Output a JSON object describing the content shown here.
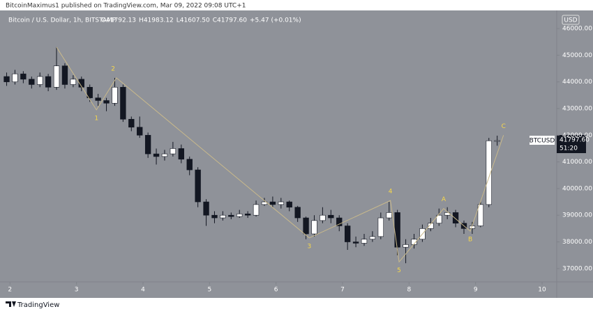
{
  "chart_data": {
    "type": "candlestick",
    "attribution": "BitcoinMaximus1 published on TradingView.com, Mar 09, 2022 09:08 UTC+1",
    "symbol": "Bitcoin / U.S. Dollar, 1h, BITSTAMP",
    "ohlc_legend": [
      {
        "key": "O",
        "value": "41792.13"
      },
      {
        "key": "H",
        "value": "41983.12"
      },
      {
        "key": "L",
        "value": "41607.50"
      },
      {
        "key": "C",
        "value": "41797.60"
      }
    ],
    "change": "+5.47 (+0.01%)",
    "currency": "USD",
    "ticker_tag": "BTCUSD",
    "last_price_label": "41797.60",
    "countdown": "51:20",
    "brand": "TradingView",
    "up_color": "#ffffff",
    "down_color": "#131722",
    "wave_color": "#c9b98b",
    "wave_label_color": "#f7d84a",
    "candles": {
      "x": [
        1.95,
        2.075,
        2.2,
        2.325,
        2.45,
        2.575,
        2.7,
        2.825,
        2.95,
        3.075,
        3.2,
        3.325,
        3.45,
        3.575,
        3.7,
        3.825,
        3.95,
        4.075,
        4.2,
        4.325,
        4.45,
        4.575,
        4.7,
        4.825,
        4.95,
        5.075,
        5.2,
        5.325,
        5.45,
        5.575,
        5.7,
        5.825,
        5.95,
        6.075,
        6.2,
        6.325,
        6.45,
        6.575,
        6.7,
        6.825,
        6.95,
        7.075,
        7.2,
        7.325,
        7.45,
        7.575,
        7.7,
        7.825,
        7.95,
        8.075,
        8.2,
        8.325,
        8.45,
        8.575,
        8.7,
        8.825,
        8.95,
        9.075,
        9.2,
        9.325
      ],
      "open": [
        44200,
        44000,
        44300,
        44100,
        43900,
        44200,
        43800,
        44600,
        43900,
        44100,
        43800,
        43400,
        43300,
        43200,
        43800,
        42600,
        42300,
        42000,
        41300,
        41200,
        41300,
        41500,
        41100,
        40700,
        39500,
        39000,
        38900,
        39000,
        38950,
        39050,
        39000,
        39400,
        39500,
        39400,
        39500,
        39300,
        38900,
        38300,
        38800,
        39000,
        38900,
        38600,
        38000,
        37950,
        38100,
        38200,
        38900,
        39100,
        37800,
        37900,
        38100,
        38500,
        38700,
        39000,
        39100,
        38700,
        38500,
        38600,
        39400,
        41792.13
      ],
      "high": [
        44350,
        44450,
        44400,
        44200,
        44350,
        44300,
        45300,
        44700,
        44250,
        44200,
        43900,
        43550,
        43400,
        44150,
        43900,
        42700,
        42700,
        42100,
        41500,
        41450,
        41750,
        41650,
        41200,
        40800,
        39600,
        39150,
        39150,
        39100,
        39200,
        39150,
        39550,
        39650,
        39700,
        39650,
        39550,
        39350,
        38950,
        39000,
        39300,
        39200,
        39000,
        38700,
        38200,
        38300,
        38400,
        39100,
        39500,
        39200,
        38100,
        38300,
        38650,
        38900,
        39250,
        39300,
        39200,
        38800,
        38750,
        39500,
        41900,
        41983.12
      ],
      "low": [
        43850,
        43900,
        43950,
        43750,
        43800,
        43650,
        43700,
        43750,
        43800,
        43650,
        43250,
        43100,
        42900,
        43100,
        42500,
        42150,
        41900,
        41150,
        40900,
        41050,
        41200,
        40950,
        40500,
        39300,
        38600,
        38700,
        38800,
        38850,
        38900,
        38900,
        38950,
        39350,
        39300,
        39250,
        39150,
        38750,
        38100,
        38200,
        38700,
        38700,
        38400,
        37700,
        37800,
        37850,
        38000,
        38100,
        38800,
        37500,
        37200,
        37750,
        38000,
        38400,
        38600,
        38850,
        38550,
        38300,
        38300,
        38550,
        39300,
        41607.5
      ],
      "close": [
        44000,
        44300,
        44100,
        43900,
        44200,
        43800,
        44600,
        43900,
        44100,
        43800,
        43400,
        43300,
        43200,
        43800,
        42600,
        42300,
        42000,
        41300,
        41200,
        41300,
        41500,
        41100,
        40700,
        39500,
        39000,
        38900,
        39000,
        38950,
        39050,
        39000,
        39400,
        39500,
        39400,
        39500,
        39300,
        38900,
        38300,
        38800,
        39000,
        38900,
        38600,
        38000,
        37950,
        38100,
        38200,
        38900,
        39100,
        37800,
        37900,
        38100,
        38500,
        38700,
        39000,
        39100,
        38700,
        38500,
        38600,
        39400,
        41792,
        41797.6
      ]
    },
    "wave_path": {
      "x": [
        2.7,
        3.3,
        3.6,
        6.5,
        7.72,
        7.85,
        8.52,
        8.92,
        9.42
      ],
      "y": [
        45300,
        42950,
        44150,
        38150,
        39550,
        37250,
        39250,
        38400,
        42000
      ]
    },
    "wave_labels": [
      {
        "label": "1",
        "x": 3.3,
        "y": 42950,
        "placement": "below"
      },
      {
        "label": "2",
        "x": 3.55,
        "y": 44150,
        "placement": "above"
      },
      {
        "label": "3",
        "x": 6.5,
        "y": 38150,
        "placement": "below"
      },
      {
        "label": "4",
        "x": 7.72,
        "y": 39550,
        "placement": "above"
      },
      {
        "label": "5",
        "x": 7.85,
        "y": 37250,
        "placement": "below"
      },
      {
        "label": "A",
        "x": 8.52,
        "y": 39250,
        "placement": "above"
      },
      {
        "label": "B",
        "x": 8.92,
        "y": 38400,
        "placement": "below"
      },
      {
        "label": "C",
        "x": 9.42,
        "y": 42000,
        "placement": "above"
      }
    ],
    "xlim": [
      1.85,
      10.22
    ],
    "xticks": [
      2,
      3,
      4,
      5,
      6,
      7,
      8,
      9,
      10
    ],
    "ylim": [
      36500,
      46600
    ],
    "yticks": [
      {
        "value": 37000,
        "label": "37000.00"
      },
      {
        "value": 38000,
        "label": "38000.00"
      },
      {
        "value": 39000,
        "label": "39000.00"
      },
      {
        "value": 40000,
        "label": "40000.00"
      },
      {
        "value": 41000,
        "label": "41000.00"
      },
      {
        "value": 42000,
        "label": "42000.00"
      },
      {
        "value": 43000,
        "label": "43000.00"
      },
      {
        "value": 44000,
        "label": "44000.00"
      },
      {
        "value": 45000,
        "label": "45000.00"
      },
      {
        "value": 46000,
        "label": "46000.00"
      }
    ]
  }
}
